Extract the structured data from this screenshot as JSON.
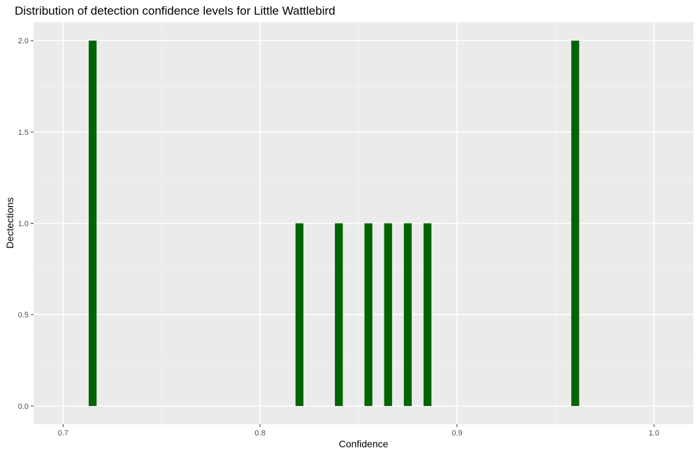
{
  "chart_data": {
    "type": "bar",
    "title": "Distribution of detection confidence levels for Little Wattlebird",
    "xlabel": "Confidence",
    "ylabel": "Dectections",
    "xlim": [
      0.685,
      1.02
    ],
    "ylim": [
      -0.1,
      2.1
    ],
    "x_ticks": [
      0.7,
      0.8,
      0.9,
      1.0
    ],
    "x_tick_labels": [
      "0.7",
      "0.8",
      "0.9",
      "1.0"
    ],
    "y_ticks": [
      0.0,
      0.5,
      1.0,
      1.5,
      2.0
    ],
    "y_tick_labels": [
      "0.0",
      "0.5",
      "1.0",
      "1.5",
      "2.0"
    ],
    "bin_width": 0.004,
    "bars": [
      {
        "x": 0.715,
        "count": 2
      },
      {
        "x": 0.82,
        "count": 1
      },
      {
        "x": 0.84,
        "count": 1
      },
      {
        "x": 0.855,
        "count": 1
      },
      {
        "x": 0.865,
        "count": 1
      },
      {
        "x": 0.875,
        "count": 1
      },
      {
        "x": 0.885,
        "count": 1
      },
      {
        "x": 0.96,
        "count": 2
      }
    ],
    "grid": true,
    "legend": "none",
    "colors": {
      "bar": "#006400",
      "panel": "#ebebeb",
      "grid_major": "#ffffff",
      "grid_minor": "#f5f5f5"
    }
  }
}
